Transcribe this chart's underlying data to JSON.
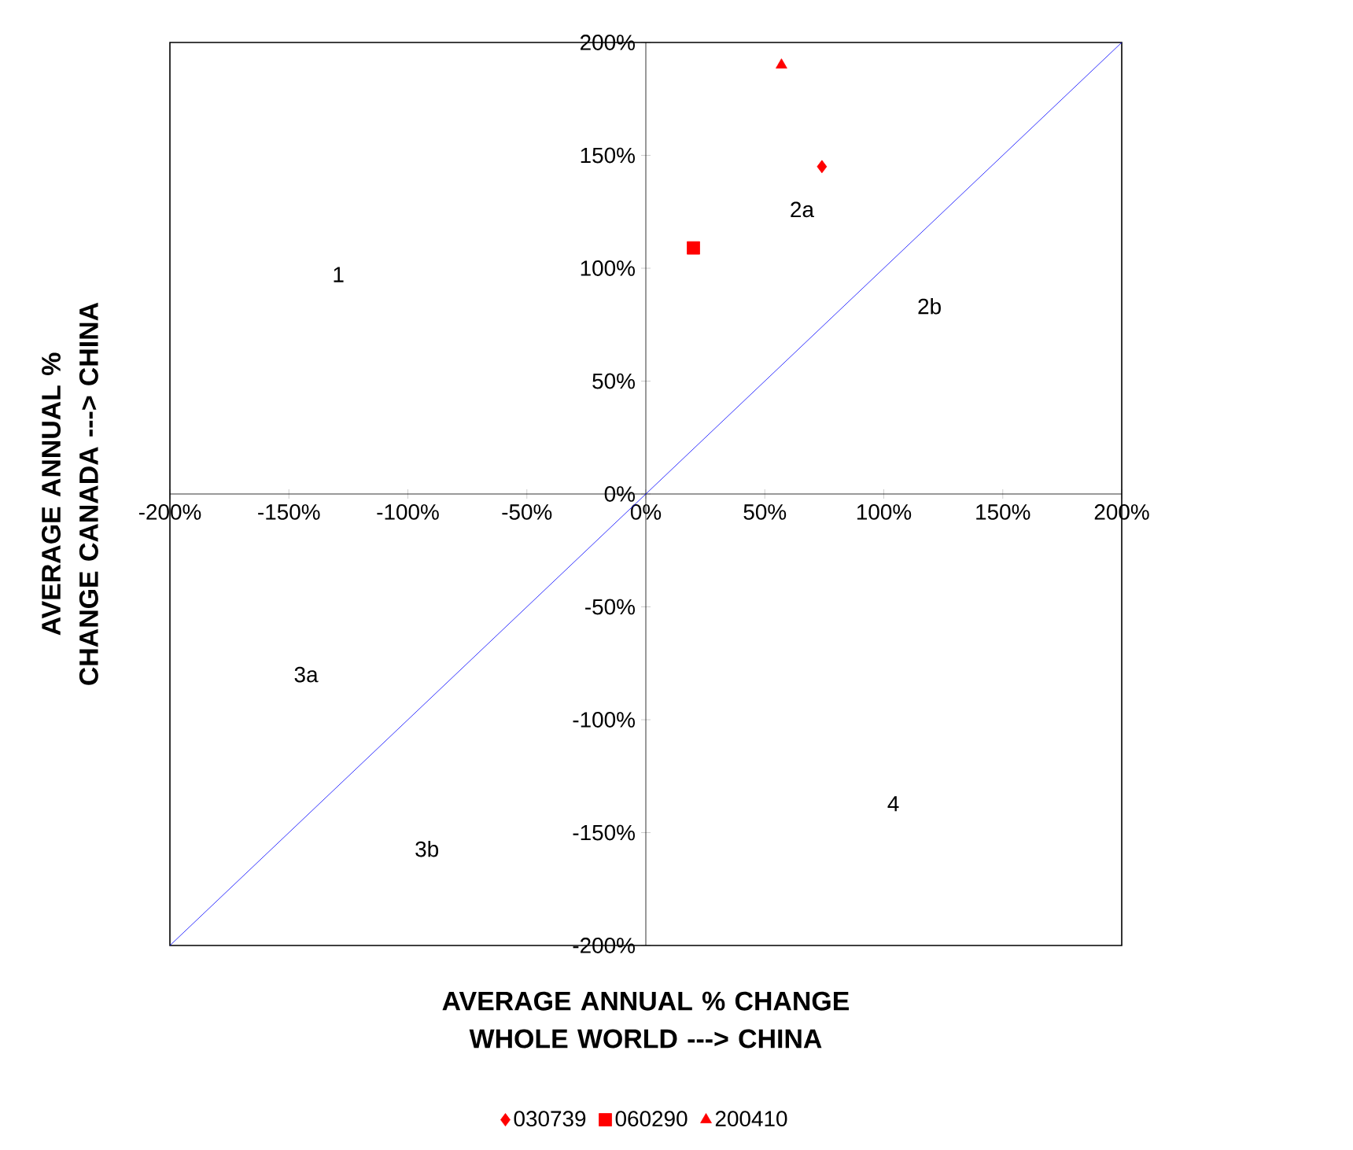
{
  "chart_data": {
    "type": "scatter",
    "xlabel": "AVERAGE ANNUAL % CHANGE WHOLE WORLD ---> CHINA",
    "ylabel": "AVERAGE ANNUAL % CHANGE CANADA ---> CHINA",
    "xlim": [
      -200,
      200
    ],
    "ylim": [
      -200,
      200
    ],
    "xticks": [
      {
        "value": -200,
        "label": "-200%"
      },
      {
        "value": -150,
        "label": "-150%"
      },
      {
        "value": -100,
        "label": "-100%"
      },
      {
        "value": -50,
        "label": "-50%"
      },
      {
        "value": 0,
        "label": "0%"
      },
      {
        "value": 50,
        "label": "50%"
      },
      {
        "value": 100,
        "label": "100%"
      },
      {
        "value": 150,
        "label": "150%"
      },
      {
        "value": 200,
        "label": "200%"
      }
    ],
    "yticks": [
      {
        "value": -200,
        "label": "-200%"
      },
      {
        "value": -150,
        "label": "-150%"
      },
      {
        "value": -100,
        "label": "-100%"
      },
      {
        "value": -50,
        "label": "-50%"
      },
      {
        "value": 0,
        "label": "0%"
      },
      {
        "value": 50,
        "label": "50%"
      },
      {
        "value": 100,
        "label": "100%"
      },
      {
        "value": 150,
        "label": "150%"
      },
      {
        "value": 200,
        "label": "200%"
      }
    ],
    "series": [
      {
        "name": "030739",
        "color": "#ff0000",
        "marker": "diamond",
        "x": [
          74
        ],
        "values": [
          145
        ]
      },
      {
        "name": "060290",
        "color": "#ff0000",
        "marker": "square",
        "x": [
          20
        ],
        "values": [
          109
        ]
      },
      {
        "name": "200410",
        "color": "#ff0000",
        "marker": "triangle",
        "x": [
          57
        ],
        "values": [
          190
        ]
      },
      {
        "type": "line",
        "color": "#0000ff",
        "marker": "none",
        "x": [
          -200,
          200
        ],
        "values": [
          -200,
          200
        ]
      }
    ],
    "annotations": [
      "1",
      "2a",
      "2b",
      "3a",
      "3b",
      "4"
    ],
    "grid": false,
    "legend": "bottom"
  }
}
